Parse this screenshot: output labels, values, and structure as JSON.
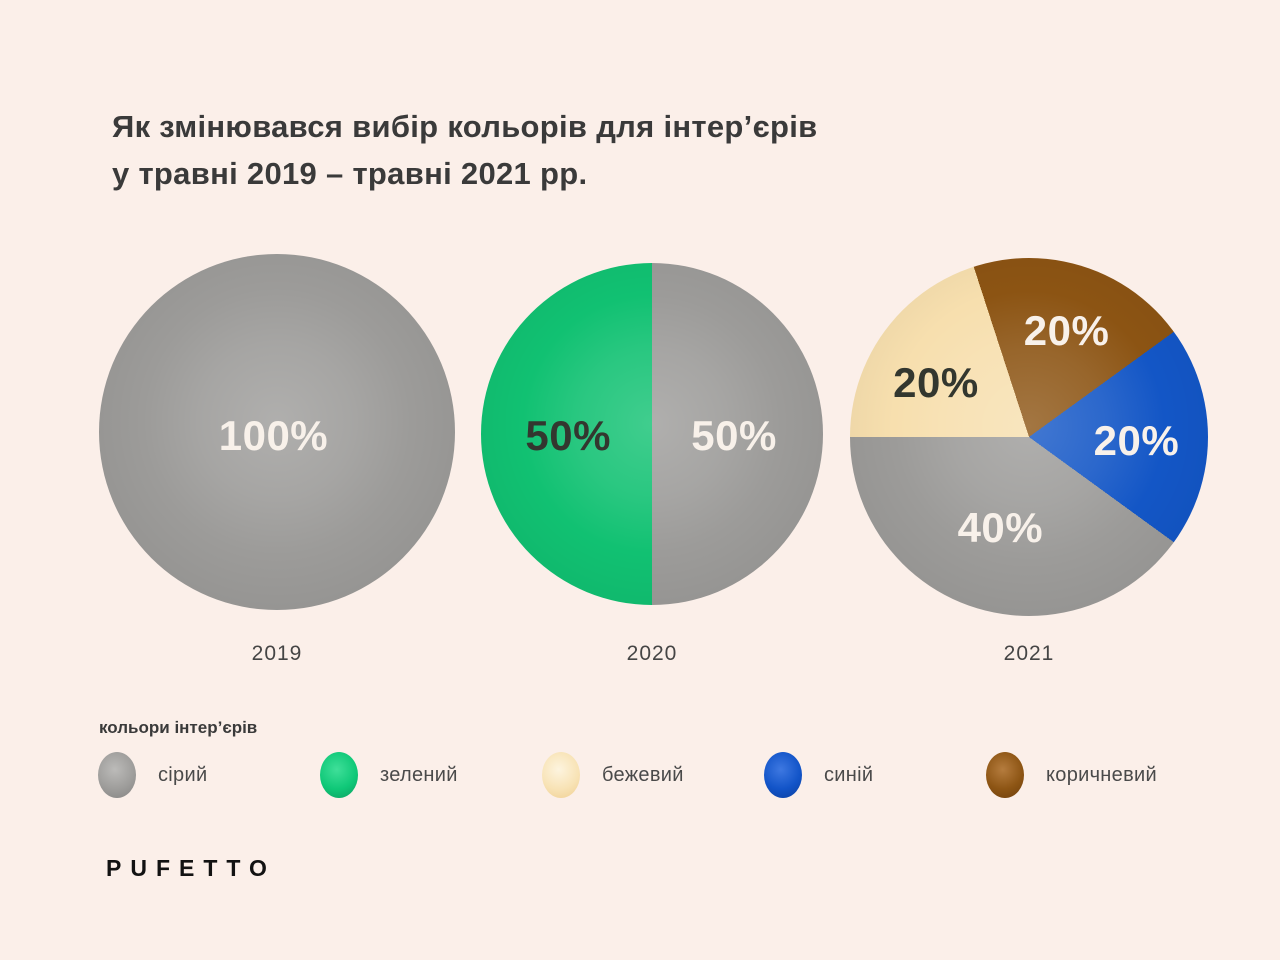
{
  "background": "#FBEFE9",
  "title": {
    "line1": "Як змінювався вибір кольорів для інтер’єрів",
    "line2": "у травні 2019 – травні 2021 рр."
  },
  "brand": "PUFETTO",
  "pies": {
    "p2019": {
      "year": "2019",
      "labels": [
        {
          "text": "100%"
        }
      ]
    },
    "p2020": {
      "year": "2020",
      "labels": [
        {
          "text": "50%"
        },
        {
          "text": "50%"
        }
      ]
    },
    "p2021": {
      "year": "2021",
      "labels": [
        {
          "text": "20%"
        },
        {
          "text": "20%"
        },
        {
          "text": "20%"
        },
        {
          "text": "40%"
        }
      ]
    }
  },
  "legend": {
    "heading": "кольори інтер’єрів",
    "items": [
      {
        "label": "сірий",
        "color": "#9C9B99"
      },
      {
        "label": "зелений",
        "color": "#0FC878"
      },
      {
        "label": "бежевий",
        "color": "#F7DFAE"
      },
      {
        "label": "синій",
        "color": "#1254C8"
      },
      {
        "label": "коричневий",
        "color": "#8D5514"
      }
    ]
  },
  "chart_data": [
    {
      "type": "pie",
      "title": "2019",
      "labels": [
        "сірий"
      ],
      "values": [
        100
      ],
      "colors": [
        "#9C9B99"
      ],
      "data_labels": [
        "100%"
      ]
    },
    {
      "type": "pie",
      "title": "2020",
      "labels": [
        "зелений",
        "сірий"
      ],
      "values": [
        50,
        50
      ],
      "colors": [
        "#11C172",
        "#9C9B99"
      ],
      "data_labels": [
        "50%",
        "50%"
      ],
      "layout": "зелений left half, сірий right half"
    },
    {
      "type": "pie",
      "title": "2021",
      "labels": [
        "коричневий",
        "синій",
        "сірий",
        "бежевий"
      ],
      "values": [
        20,
        20,
        40,
        20
      ],
      "colors": [
        "#8C5413",
        "#1356C6",
        "#9C9B99",
        "#F7DFAE"
      ],
      "data_labels": [
        "20%",
        "20%",
        "40%",
        "20%"
      ],
      "layout": "clockwise from top: коричневий, синій, сірий, бежевий"
    }
  ]
}
